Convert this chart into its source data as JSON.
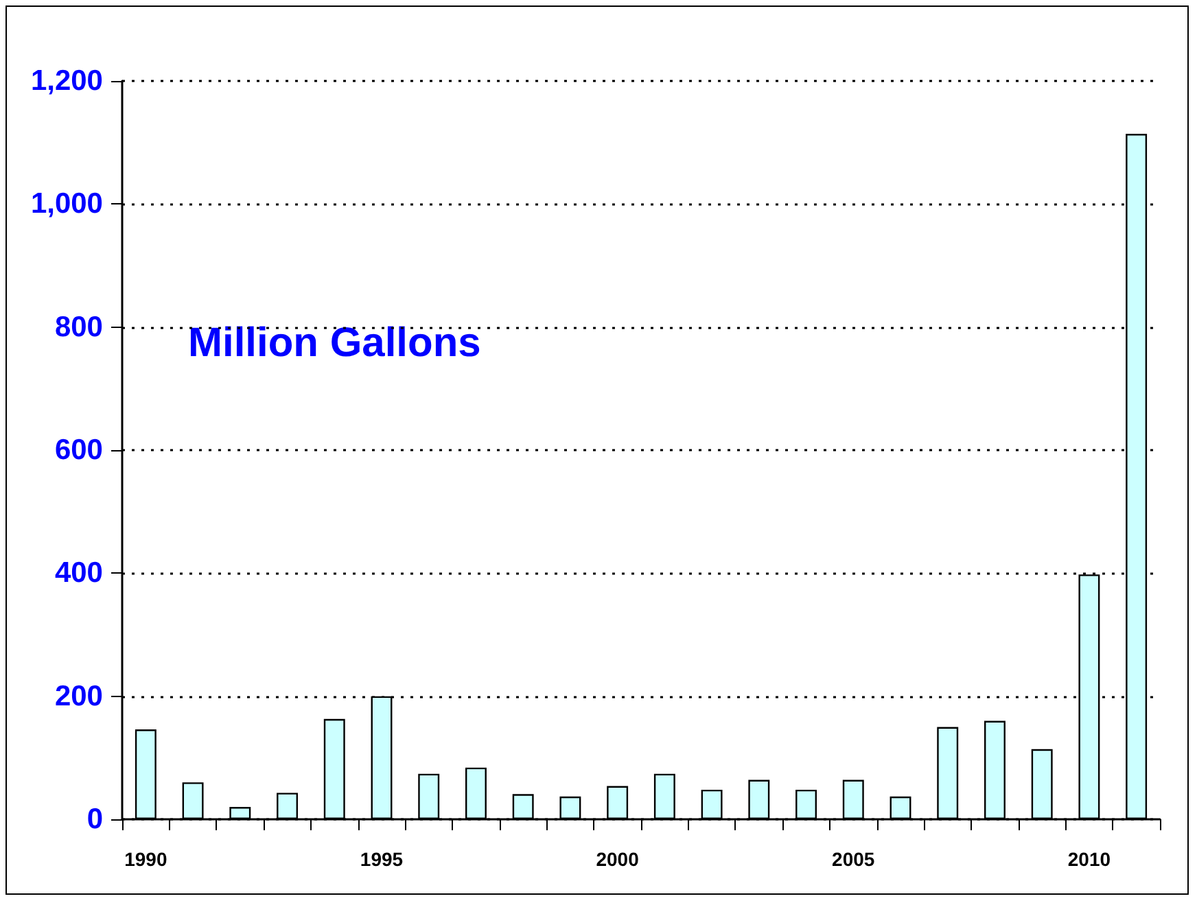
{
  "chart_data": {
    "type": "bar",
    "categories": [
      "1990",
      null,
      null,
      null,
      null,
      "1995",
      null,
      null,
      null,
      null,
      "2000",
      null,
      null,
      null,
      null,
      "2005",
      null,
      null,
      null,
      null,
      "2010",
      null
    ],
    "values": [
      146,
      60,
      20,
      43,
      163,
      200,
      74,
      84,
      41,
      37,
      54,
      74,
      48,
      64,
      48,
      64,
      37,
      150,
      160,
      114,
      398,
      1114
    ],
    "color": "#ccffff",
    "ylim": [
      0,
      1200
    ],
    "yticks": [
      0,
      200,
      400,
      600,
      800,
      {
        "value": 1000,
        "label": "1,000"
      },
      {
        "value": 1200,
        "label": "1,200"
      }
    ],
    "grid": "y",
    "annotations": [
      "Million Gallons"
    ]
  }
}
